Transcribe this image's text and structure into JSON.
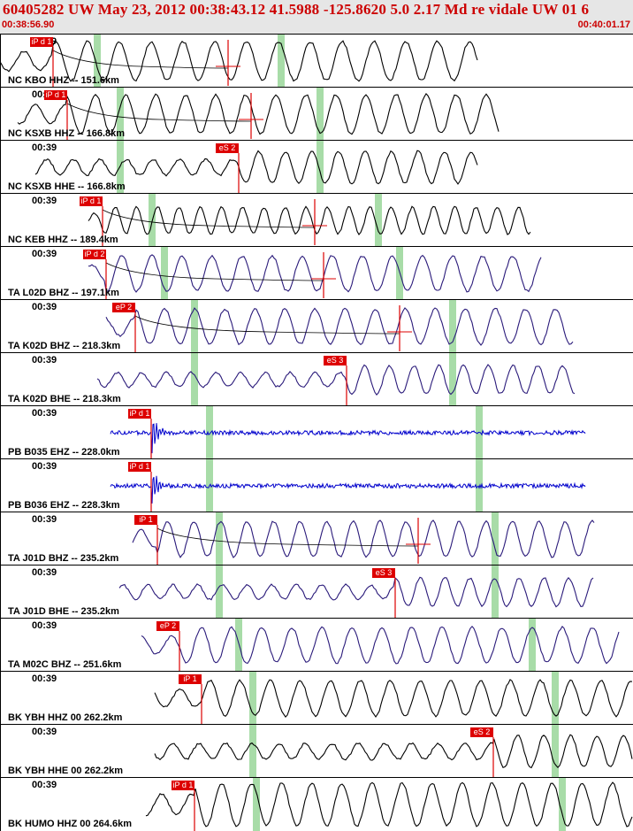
{
  "header": {
    "title": "60405282 UW May 23, 2012 00:38:43.12   41.5988 -125.8620  5.0 2.17 Md re vidale UW 01   6",
    "start_time": "00:38:56.90",
    "end_time": "00:40:01.17"
  },
  "colors": {
    "header_bg": "#e6e6e6",
    "header_text": "#cc0000",
    "trace_black": "#000000",
    "trace_purple": "#2a1a7a",
    "trace_blue": "#0000cc",
    "pick_red": "#dd0000",
    "window_green": "#a8dca8"
  },
  "traces": [
    {
      "station": "NC KBO HHZ -- 151.6km",
      "time": "00:39",
      "pick": "iP d 1",
      "color": "black"
    },
    {
      "station": "NC KSXB HHZ -- 166.8km",
      "time": "00:39",
      "pick": "iP d 1",
      "color": "black"
    },
    {
      "station": "NC KSXB HHE -- 166.8km",
      "time": "00:39",
      "pick": "eS 2",
      "color": "black"
    },
    {
      "station": "NC KEB HHZ -- 189.4km",
      "time": "00:39",
      "pick": "iP d 1",
      "color": "black"
    },
    {
      "station": "TA L02D BHZ -- 197.1km",
      "time": "00:39",
      "pick": "iP d 2",
      "color": "purple"
    },
    {
      "station": "TA K02D BHZ -- 218.3km",
      "time": "00:39",
      "pick": "eP 2",
      "color": "purple"
    },
    {
      "station": "TA K02D BHE -- 218.3km",
      "time": "00:39",
      "pick": "eS 3",
      "color": "purple"
    },
    {
      "station": "PB B035 EHZ -- 228.0km",
      "time": "00:39",
      "pick": "iP d 1",
      "color": "blue"
    },
    {
      "station": "PB B036 EHZ -- 228.3km",
      "time": "00:39",
      "pick": "iP d 1",
      "color": "blue"
    },
    {
      "station": "TA J01D BHZ -- 235.2km",
      "time": "00:39",
      "pick": "iP 1",
      "color": "purple"
    },
    {
      "station": "TA J01D BHE -- 235.2km",
      "time": "00:39",
      "pick": "eS 3",
      "color": "purple"
    },
    {
      "station": "TA M02C BHZ -- 251.6km",
      "time": "00:39",
      "pick": "eP 2",
      "color": "purple"
    },
    {
      "station": "BK YBH HHZ 00 262.2km",
      "time": "00:39",
      "pick": "iP 1",
      "color": "black"
    },
    {
      "station": "BK YBH HHE 00 262.2km",
      "time": "00:39",
      "pick": "eS 2",
      "color": "black"
    },
    {
      "station": "BK HUMO HHZ 00 264.6km",
      "time": "00:39",
      "pick": "iP d 1",
      "color": "black"
    }
  ]
}
